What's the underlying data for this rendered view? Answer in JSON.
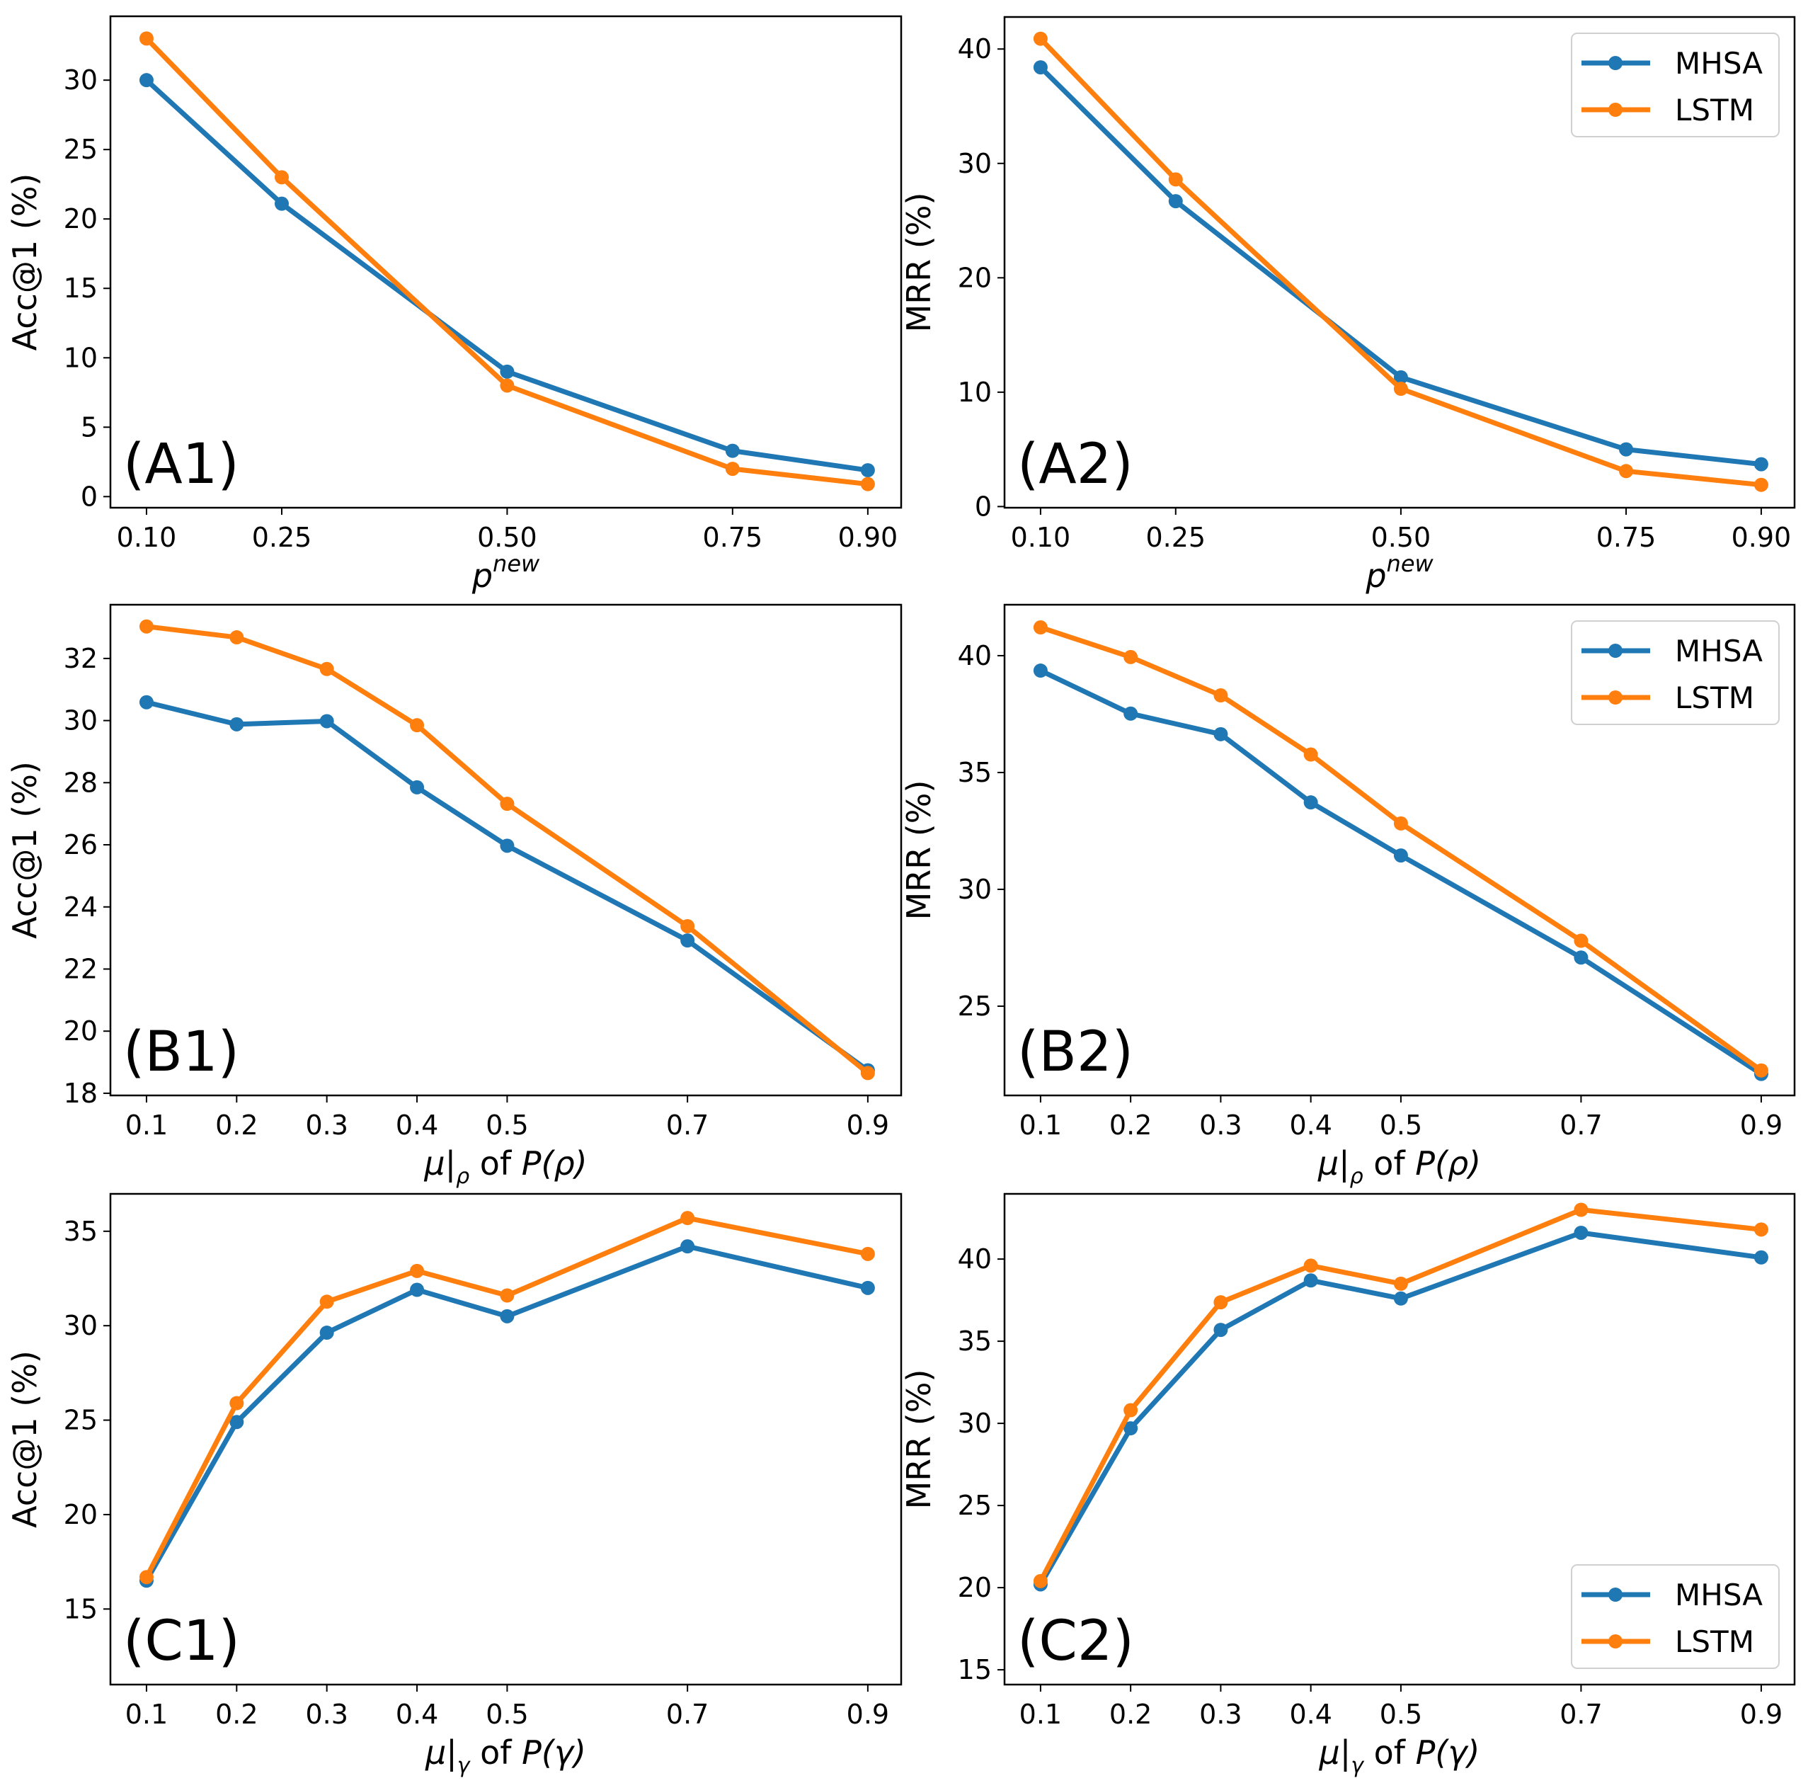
{
  "figure": {
    "colors": {
      "MHSA": "#1f77b4",
      "LSTM": "#ff7f0e"
    }
  },
  "chart_data": [
    {
      "id": "A1",
      "type": "line",
      "panel_label": "(A1)",
      "xlabel": "p^new",
      "xlabel_parts": {
        "base": "p",
        "sup": "new"
      },
      "ylabel": "Acc@1 (%)",
      "x": [
        0.1,
        0.25,
        0.5,
        0.75,
        0.9
      ],
      "x_tick_labels": [
        "0.10",
        "0.25",
        "0.50",
        "0.75",
        "0.90"
      ],
      "y_ticks": [
        0,
        5,
        10,
        15,
        20,
        25,
        30
      ],
      "y_tick_labels": [
        "0",
        "5",
        "10",
        "15",
        "20",
        "25",
        "30"
      ],
      "xlim": [
        0.06,
        0.937
      ],
      "ylim": [
        -0.8,
        34.6
      ],
      "legend": null,
      "series": [
        {
          "name": "MHSA",
          "values": [
            30.0,
            21.1,
            9.0,
            3.3,
            1.9
          ]
        },
        {
          "name": "LSTM",
          "values": [
            33.0,
            23.0,
            8.0,
            2.0,
            0.9
          ]
        }
      ]
    },
    {
      "id": "A2",
      "type": "line",
      "panel_label": "(A2)",
      "xlabel": "p^new",
      "xlabel_parts": {
        "base": "p",
        "sup": "new"
      },
      "ylabel": "MRR (%)",
      "x": [
        0.1,
        0.25,
        0.5,
        0.75,
        0.9
      ],
      "x_tick_labels": [
        "0.10",
        "0.25",
        "0.50",
        "0.75",
        "0.90"
      ],
      "y_ticks": [
        0,
        10,
        20,
        30,
        40
      ],
      "y_tick_labels": [
        "0",
        "10",
        "20",
        "30",
        "40"
      ],
      "xlim": [
        0.06,
        0.937
      ],
      "ylim": [
        -0.1,
        42.8
      ],
      "legend": {
        "placement": "top-right",
        "entries": [
          "MHSA",
          "LSTM"
        ]
      },
      "series": [
        {
          "name": "MHSA",
          "values": [
            38.4,
            26.7,
            11.3,
            5.0,
            3.7
          ]
        },
        {
          "name": "LSTM",
          "values": [
            40.9,
            28.6,
            10.3,
            3.1,
            1.9
          ]
        }
      ]
    },
    {
      "id": "B1",
      "type": "line",
      "panel_label": "(B1)",
      "xlabel": "μ|ρ of P(ρ)",
      "xlabel_parts": {
        "mu": "μ",
        "sub": "ρ",
        "mid": " of ",
        "P": "P",
        "arg": "(ρ)"
      },
      "ylabel": "Acc@1 (%)",
      "x": [
        0.1,
        0.2,
        0.3,
        0.4,
        0.5,
        0.7,
        0.9
      ],
      "x_tick_labels": [
        "0.1",
        "0.2",
        "0.3",
        "0.4",
        "0.5",
        "0.7",
        "0.9"
      ],
      "y_ticks": [
        18,
        20,
        22,
        24,
        26,
        28,
        30,
        32
      ],
      "y_tick_labels": [
        "18",
        "20",
        "22",
        "24",
        "26",
        "28",
        "30",
        "32"
      ],
      "xlim": [
        0.06,
        0.937
      ],
      "ylim": [
        17.93,
        33.73
      ],
      "legend": null,
      "series": [
        {
          "name": "MHSA",
          "values": [
            30.59,
            29.88,
            29.98,
            27.85,
            25.97,
            22.92,
            18.74
          ]
        },
        {
          "name": "LSTM",
          "values": [
            33.03,
            32.68,
            31.66,
            29.85,
            27.32,
            23.38,
            18.65
          ]
        }
      ]
    },
    {
      "id": "B2",
      "type": "line",
      "panel_label": "(B2)",
      "xlabel": "μ|ρ of P(ρ)",
      "xlabel_parts": {
        "mu": "μ",
        "sub": "ρ",
        "mid": " of ",
        "P": "P",
        "arg": "(ρ)"
      },
      "ylabel": "MRR (%)",
      "x": [
        0.1,
        0.2,
        0.3,
        0.4,
        0.5,
        0.7,
        0.9
      ],
      "x_tick_labels": [
        "0.1",
        "0.2",
        "0.3",
        "0.4",
        "0.5",
        "0.7",
        "0.9"
      ],
      "y_ticks": [
        25,
        30,
        35,
        40
      ],
      "y_tick_labels": [
        "25",
        "30",
        "35",
        "40"
      ],
      "xlim": [
        0.06,
        0.937
      ],
      "ylim": [
        21.18,
        42.18
      ],
      "legend": {
        "placement": "top-right",
        "entries": [
          "MHSA",
          "LSTM"
        ]
      },
      "series": [
        {
          "name": "MHSA",
          "values": [
            39.36,
            37.52,
            36.64,
            33.72,
            31.45,
            27.08,
            22.1
          ]
        },
        {
          "name": "LSTM",
          "values": [
            41.21,
            39.94,
            38.3,
            35.77,
            32.82,
            27.8,
            22.25
          ]
        }
      ]
    },
    {
      "id": "C1",
      "type": "line",
      "panel_label": "(C1)",
      "xlabel": "μ|γ of P(γ)",
      "xlabel_parts": {
        "mu": "μ",
        "sub": "γ",
        "mid": " of ",
        "P": "P",
        "arg": "(γ)"
      },
      "ylabel": "Acc@1 (%)",
      "x": [
        0.1,
        0.2,
        0.3,
        0.4,
        0.5,
        0.7,
        0.9
      ],
      "x_tick_labels": [
        "0.1",
        "0.2",
        "0.3",
        "0.4",
        "0.5",
        "0.7",
        "0.9"
      ],
      "y_ticks": [
        15,
        20,
        25,
        30,
        35
      ],
      "y_tick_labels": [
        "15",
        "20",
        "25",
        "30",
        "35"
      ],
      "xlim": [
        0.06,
        0.937
      ],
      "ylim": [
        11.0,
        36.98
      ],
      "legend": null,
      "series": [
        {
          "name": "MHSA",
          "values": [
            16.5,
            24.9,
            29.63,
            31.9,
            30.5,
            34.2,
            32.0
          ]
        },
        {
          "name": "LSTM",
          "values": [
            16.69,
            25.9,
            31.27,
            32.9,
            31.6,
            35.7,
            33.8
          ]
        }
      ]
    },
    {
      "id": "C2",
      "type": "line",
      "panel_label": "(C2)",
      "xlabel": "μ|γ of P(γ)",
      "xlabel_parts": {
        "mu": "μ",
        "sub": "γ",
        "mid": " of ",
        "P": "P",
        "arg": "(γ)"
      },
      "ylabel": "MRR (%)",
      "x": [
        0.1,
        0.2,
        0.3,
        0.4,
        0.5,
        0.7,
        0.9
      ],
      "x_tick_labels": [
        "0.1",
        "0.2",
        "0.3",
        "0.4",
        "0.5",
        "0.7",
        "0.9"
      ],
      "y_ticks": [
        15,
        20,
        25,
        30,
        35,
        40
      ],
      "y_tick_labels": [
        "15",
        "20",
        "25",
        "30",
        "35",
        "40"
      ],
      "xlim": [
        0.06,
        0.937
      ],
      "ylim": [
        14.1,
        43.97
      ],
      "legend": {
        "placement": "bottom-right",
        "entries": [
          "MHSA",
          "LSTM"
        ]
      },
      "series": [
        {
          "name": "MHSA",
          "values": [
            20.2,
            29.7,
            35.69,
            38.7,
            37.6,
            41.6,
            40.1
          ]
        },
        {
          "name": "LSTM",
          "values": [
            20.4,
            30.8,
            37.37,
            39.6,
            38.5,
            43.0,
            41.8
          ]
        }
      ]
    }
  ]
}
